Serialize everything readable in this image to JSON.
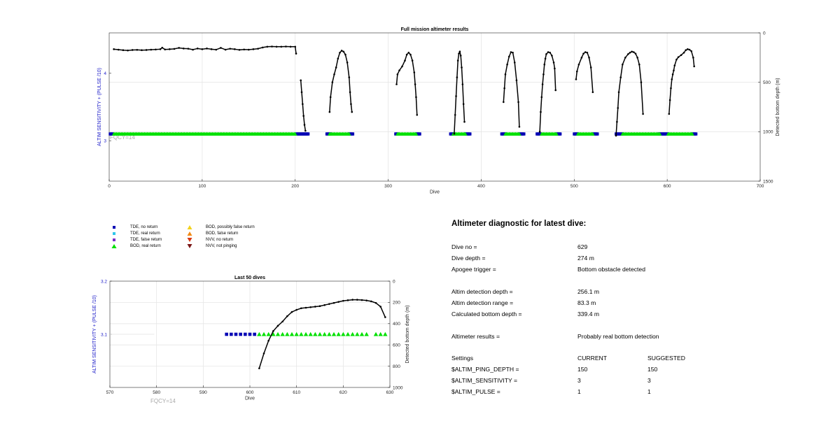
{
  "chart_data": [
    {
      "type": "scatter",
      "title": "Full mission altimeter results",
      "xlabel": "Dive",
      "ylabel_left": "ALTIM SENSITIVITY + (PULSE /10)",
      "ylabel_right": "Detected bottom depth (m)",
      "xlim": [
        0,
        700
      ],
      "xticks": [
        "0",
        "100",
        "200",
        "300",
        "400",
        "500",
        "600",
        "700"
      ],
      "ylim_left": [
        2.4,
        4.6
      ],
      "yticks_left": [
        "3",
        "4"
      ],
      "ylim_right": [
        0,
        1500
      ],
      "yticks_right": [
        "0",
        "500",
        "1000",
        "1500"
      ],
      "grid": true,
      "annotation": "FQCY=14",
      "markers": {
        "value": 3.1,
        "tde_no_return_ranges": [
          [
            1,
            4
          ],
          [
            201,
            214
          ],
          [
            234,
            238
          ],
          [
            258,
            262
          ],
          [
            308,
            310
          ],
          [
            330,
            334
          ],
          [
            367,
            371
          ],
          [
            383,
            388
          ],
          [
            422,
            426
          ],
          [
            441,
            446
          ],
          [
            460,
            464
          ],
          [
            481,
            485
          ],
          [
            500,
            504
          ],
          [
            520,
            525
          ],
          [
            545,
            552
          ],
          [
            591,
            601
          ],
          [
            627,
            631
          ]
        ],
        "bod_real_return_ranges": [
          [
            5,
            200
          ],
          [
            237,
            258
          ],
          [
            310,
            330
          ],
          [
            370,
            383
          ],
          [
            426,
            441
          ],
          [
            465,
            481
          ],
          [
            504,
            520
          ],
          [
            552,
            592
          ],
          [
            601,
            627
          ]
        ]
      },
      "series": [
        {
          "kind": "depth",
          "x": [
            5,
            10,
            15,
            20,
            25,
            30,
            35,
            40,
            45,
            50,
            55,
            57,
            60,
            65,
            70,
            75,
            80,
            85,
            90,
            95,
            100,
            105,
            110,
            115,
            120,
            125,
            130,
            135,
            140,
            145,
            150,
            155,
            160,
            165,
            170,
            175,
            180,
            185,
            190,
            195,
            200,
            201
          ],
          "y": [
            165,
            170,
            175,
            178,
            173,
            172,
            175,
            173,
            170,
            168,
            165,
            150,
            168,
            165,
            162,
            152,
            158,
            160,
            170,
            158,
            165,
            158,
            165,
            170,
            152,
            170,
            160,
            165,
            172,
            168,
            170,
            165,
            160,
            148,
            140,
            138,
            140,
            140,
            138,
            140,
            140,
            210
          ]
        },
        {
          "kind": "depth",
          "x": [
            206,
            207,
            208,
            209,
            210,
            211
          ],
          "y": [
            480,
            600,
            720,
            840,
            930,
            990
          ]
        },
        {
          "kind": "depth",
          "x": [
            237,
            238,
            240,
            242,
            244,
            246,
            248,
            250,
            252,
            254,
            256,
            258,
            259,
            260,
            261
          ],
          "y": [
            800,
            650,
            500,
            420,
            350,
            260,
            200,
            180,
            190,
            220,
            300,
            450,
            600,
            720,
            800
          ]
        },
        {
          "kind": "depth",
          "x": [
            309,
            310,
            312,
            315,
            318,
            320,
            322,
            324,
            326,
            328,
            329,
            330,
            331
          ],
          "y": [
            520,
            420,
            380,
            340,
            280,
            220,
            200,
            220,
            280,
            400,
            520,
            650,
            830
          ]
        },
        {
          "kind": "depth",
          "x": [
            371,
            372,
            373,
            374,
            375,
            376,
            377,
            378,
            379,
            380,
            381,
            382
          ],
          "y": [
            1020,
            830,
            640,
            450,
            280,
            210,
            190,
            230,
            350,
            520,
            720,
            900
          ]
        },
        {
          "kind": "depth",
          "x": [
            424,
            425,
            426,
            428,
            430,
            432,
            434,
            436,
            438,
            440,
            441
          ],
          "y": [
            700,
            560,
            420,
            320,
            240,
            195,
            200,
            300,
            480,
            700,
            950
          ]
        },
        {
          "kind": "depth",
          "x": [
            463,
            464,
            465,
            466,
            467,
            468,
            469,
            470,
            472,
            474,
            476,
            478,
            479,
            480
          ],
          "y": [
            1000,
            800,
            650,
            520,
            420,
            320,
            260,
            215,
            195,
            200,
            230,
            300,
            360,
            580
          ]
        },
        {
          "kind": "depth",
          "x": [
            502,
            503,
            505,
            508,
            510,
            512,
            514,
            516,
            518,
            520
          ],
          "y": [
            470,
            390,
            320,
            250,
            210,
            195,
            200,
            250,
            350,
            600
          ]
        },
        {
          "kind": "depth",
          "x": [
            545,
            546,
            547,
            548,
            550,
            552,
            555,
            558,
            560,
            562,
            564,
            566,
            568,
            570,
            572,
            574
          ],
          "y": [
            1040,
            900,
            760,
            600,
            450,
            320,
            250,
            215,
            200,
            190,
            195,
            210,
            250,
            320,
            500,
            820
          ]
        },
        {
          "kind": "depth",
          "x": [
            602,
            603,
            604,
            605,
            606,
            607,
            608,
            610,
            612,
            615,
            618,
            620,
            622,
            624,
            626,
            628,
            629
          ],
          "y": [
            820,
            680,
            560,
            470,
            420,
            380,
            330,
            270,
            245,
            225,
            200,
            175,
            165,
            170,
            185,
            250,
            339
          ]
        }
      ]
    },
    {
      "type": "scatter",
      "title": "Last 50 dives",
      "xlabel": "Dive",
      "ylabel_left": "ALTIM SENSITIVITY + (PULSE /10)",
      "ylabel_right": "Detected bottom depth (m)",
      "xlim": [
        570,
        630
      ],
      "xticks": [
        "570",
        "580",
        "590",
        "600",
        "610",
        "620",
        "630"
      ],
      "ylim_left": [
        3.0,
        3.2
      ],
      "yticks_left": [
        "3.1",
        "3.2"
      ],
      "ylim_right": [
        0,
        1000
      ],
      "yticks_right": [
        "0",
        "200",
        "400",
        "600",
        "800",
        "1000"
      ],
      "grid": true,
      "annotation": "FQCY=14",
      "markers": {
        "value": 3.1,
        "tde_no_return": [
          595,
          596,
          597,
          598,
          599,
          600,
          601
        ],
        "bod_real_return": [
          602,
          603,
          604,
          605,
          606,
          607,
          608,
          609,
          610,
          611,
          612,
          613,
          614,
          615,
          616,
          617,
          618,
          619,
          620,
          621,
          622,
          623,
          624,
          625,
          627,
          628,
          629
        ]
      },
      "series": [
        {
          "kind": "depth",
          "x": [
            602,
            603,
            604,
            605,
            606,
            607,
            608,
            609,
            610,
            611,
            612,
            613,
            614,
            615,
            616,
            617,
            618,
            619,
            620,
            621,
            622,
            623,
            624,
            625,
            626,
            627,
            628,
            629
          ],
          "y": [
            820,
            680,
            560,
            470,
            420,
            380,
            330,
            290,
            270,
            255,
            250,
            245,
            240,
            235,
            225,
            215,
            205,
            195,
            185,
            180,
            175,
            175,
            178,
            182,
            190,
            205,
            240,
            339
          ]
        }
      ]
    }
  ],
  "legend": [
    {
      "label": "TDE, no return",
      "marker": "square",
      "color": "#0000b4"
    },
    {
      "label": "TDE, real return",
      "marker": "square",
      "color": "#2fc7ea"
    },
    {
      "label": "TDE, false return",
      "marker": "square",
      "color": "#7a2ec7"
    },
    {
      "label": "BOD, real return",
      "marker": "triangle-up",
      "color": "#00e000"
    },
    {
      "label": "BOD, possibly false return",
      "marker": "triangle-up",
      "color": "#f2d21b"
    },
    {
      "label": "BOD, false return",
      "marker": "triangle-up",
      "color": "#f28a14"
    },
    {
      "label": "NVV, no return",
      "marker": "triangle-down",
      "color": "#d83a16"
    },
    {
      "label": "NVV, not pinging",
      "marker": "triangle-down",
      "color": "#7a1616"
    }
  ],
  "colors": {
    "left_axis_label": "#1a1ac8",
    "annotation": "#a8a8a8",
    "depth_line": "#000000",
    "grid": "#e6e6e6"
  },
  "diagnostic": {
    "heading": "Altimeter diagnostic for latest dive:",
    "rows": [
      {
        "label": "Dive no =",
        "value": "629"
      },
      {
        "label": "Dive depth =",
        "value": "274 m"
      },
      {
        "label": "Apogee trigger =",
        "value": "Bottom obstacle detected"
      },
      {
        "label": "Altim detection depth =",
        "value": "256.1 m"
      },
      {
        "label": "Altim detection range =",
        "value": "83.3 m"
      },
      {
        "label": "Calculated bottom depth =",
        "value": "339.4 m"
      },
      {
        "label": "Altimeter results =",
        "value": "Probably real bottom detection"
      }
    ],
    "settings": {
      "header": {
        "label": "Settings",
        "current": "CURRENT",
        "suggested": "SUGGESTED"
      },
      "rows": [
        {
          "label": "$ALTIM_PING_DEPTH =",
          "current": "150",
          "suggested": "150"
        },
        {
          "label": "$ALTIM_SENSITIVITY =",
          "current": "3",
          "suggested": "3"
        },
        {
          "label": "$ALTIM_PULSE =",
          "current": "1",
          "suggested": "1"
        }
      ]
    }
  }
}
